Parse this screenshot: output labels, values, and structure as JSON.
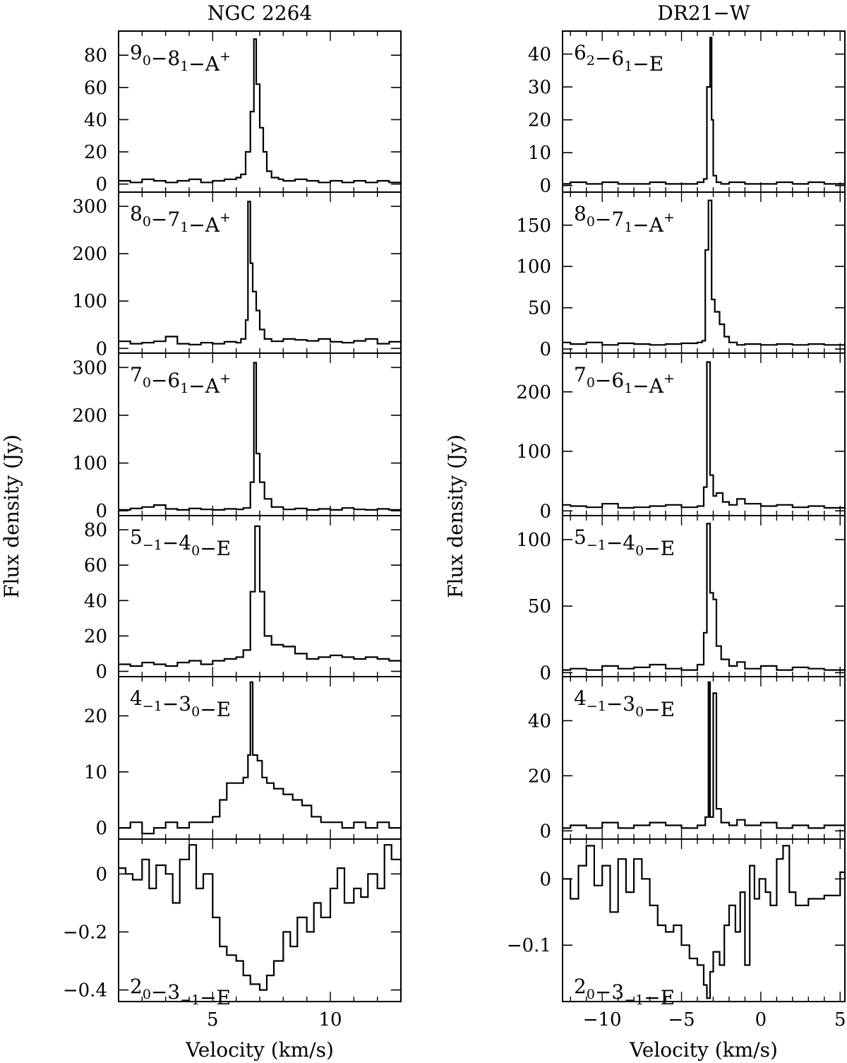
{
  "figure": {
    "ylabel": "Flux density (Jy)",
    "xlabel": "Velocity (km/s)"
  },
  "chart_data": [
    {
      "type": "line",
      "column": "NGC 2264",
      "title": "NGC 2264",
      "transition": {
        "a": "9",
        "as": "0",
        "b": "8",
        "bs": "1",
        "sym": "A",
        "sup": "+"
      },
      "xlim": [
        1.0,
        13.0
      ],
      "ylim": [
        -5,
        95
      ],
      "yticks": [
        0,
        20,
        40,
        60,
        80
      ],
      "ytick_labels": [
        "0",
        "20",
        "40",
        "60",
        "80"
      ],
      "series": [
        {
          "x": [
            1.0,
            1.5,
            2.0,
            2.5,
            3.0,
            3.5,
            4.0,
            4.5,
            5.0,
            5.5,
            6.0,
            6.2,
            6.4,
            6.6,
            6.75,
            6.85,
            7.0,
            7.15,
            7.3,
            7.5,
            7.8,
            8.0,
            8.5,
            9.0,
            9.5,
            10.0,
            10.5,
            11.0,
            11.5,
            12.0,
            12.5,
            13.0
          ],
          "y": [
            2,
            1,
            3,
            2,
            1,
            2,
            3,
            1,
            2,
            3,
            4,
            6,
            20,
            45,
            90,
            62,
            35,
            20,
            8,
            4,
            3,
            2,
            3,
            2,
            1,
            2,
            1,
            2,
            1,
            2,
            1,
            2
          ]
        }
      ]
    },
    {
      "type": "line",
      "column": "NGC 2264",
      "transition": {
        "a": "8",
        "as": "0",
        "b": "7",
        "bs": "1",
        "sym": "A",
        "sup": "+"
      },
      "xlim": [
        1.0,
        13.0
      ],
      "ylim": [
        -10,
        330
      ],
      "yticks": [
        0,
        100,
        200,
        300
      ],
      "ytick_labels": [
        "0",
        "100",
        "200",
        "300"
      ],
      "series": [
        {
          "x": [
            1.0,
            1.5,
            2.0,
            2.5,
            3.0,
            3.5,
            4.0,
            4.5,
            5.0,
            5.5,
            6.0,
            6.2,
            6.4,
            6.5,
            6.6,
            6.7,
            6.85,
            7.0,
            7.2,
            7.5,
            8.0,
            8.5,
            9.0,
            9.5,
            10.0,
            10.5,
            11.0,
            11.5,
            12.0,
            12.5,
            13.0
          ],
          "y": [
            15,
            10,
            12,
            15,
            25,
            10,
            8,
            12,
            10,
            14,
            12,
            20,
            60,
            310,
            180,
            120,
            80,
            40,
            20,
            15,
            20,
            18,
            16,
            20,
            14,
            12,
            16,
            20,
            10,
            14,
            8
          ]
        }
      ]
    },
    {
      "type": "line",
      "column": "NGC 2264",
      "transition": {
        "a": "7",
        "as": "0",
        "b": "6",
        "bs": "1",
        "sym": "A",
        "sup": "+"
      },
      "xlim": [
        1.0,
        13.0
      ],
      "ylim": [
        -10,
        330
      ],
      "yticks": [
        0,
        100,
        200,
        300
      ],
      "ytick_labels": [
        "0",
        "100",
        "200",
        "300"
      ],
      "series": [
        {
          "x": [
            1.0,
            1.5,
            2.0,
            2.5,
            3.0,
            3.5,
            4.0,
            4.5,
            5.0,
            5.5,
            6.0,
            6.3,
            6.6,
            6.75,
            6.85,
            7.0,
            7.2,
            7.5,
            8.0,
            8.5,
            9.0,
            9.5,
            10.0,
            10.5,
            11.0,
            11.5,
            12.0,
            12.5,
            13.0
          ],
          "y": [
            2,
            5,
            8,
            12,
            4,
            2,
            5,
            3,
            2,
            4,
            3,
            6,
            60,
            310,
            120,
            60,
            25,
            8,
            3,
            5,
            2,
            4,
            2,
            6,
            3,
            2,
            4,
            2,
            3
          ]
        }
      ]
    },
    {
      "type": "line",
      "column": "NGC 2264",
      "transition": {
        "a": "5",
        "as": "−1",
        "b": "4",
        "bs": "0",
        "sym": "E",
        "sup": ""
      },
      "xlim": [
        1.0,
        13.0
      ],
      "ylim": [
        -3,
        88
      ],
      "yticks": [
        0,
        20,
        40,
        60,
        80
      ],
      "ytick_labels": [
        "0",
        "20",
        "40",
        "60",
        "80"
      ],
      "series": [
        {
          "x": [
            1.0,
            1.5,
            2.0,
            2.5,
            3.0,
            3.5,
            4.0,
            4.5,
            5.0,
            5.5,
            6.0,
            6.3,
            6.6,
            6.8,
            7.0,
            7.2,
            7.5,
            8.0,
            8.5,
            9.0,
            9.5,
            10.0,
            10.5,
            11.0,
            11.5,
            12.0,
            12.5,
            13.0
          ],
          "y": [
            4,
            3,
            5,
            4,
            3,
            5,
            6,
            4,
            6,
            7,
            8,
            12,
            45,
            82,
            45,
            20,
            15,
            14,
            10,
            7,
            8,
            9,
            8,
            7,
            8,
            7,
            6,
            5
          ]
        }
      ]
    },
    {
      "type": "line",
      "column": "NGC 2264",
      "transition": {
        "a": "4",
        "as": "−1",
        "b": "3",
        "bs": "0",
        "sym": "E",
        "sup": ""
      },
      "xlim": [
        1.0,
        13.0
      ],
      "ylim": [
        -2,
        27
      ],
      "yticks": [
        0,
        10,
        20
      ],
      "ytick_labels": [
        "0",
        "10",
        "20"
      ],
      "series": [
        {
          "x": [
            1.0,
            1.5,
            2.0,
            2.5,
            3.0,
            3.5,
            4.0,
            4.5,
            5.0,
            5.3,
            5.6,
            5.9,
            6.1,
            6.3,
            6.5,
            6.6,
            6.7,
            6.9,
            7.1,
            7.3,
            7.6,
            8.0,
            8.4,
            8.8,
            9.2,
            9.6,
            10.0,
            10.5,
            11.0,
            11.5,
            12.0,
            12.5,
            13.0
          ],
          "y": [
            0,
            1,
            -1,
            0,
            1,
            0,
            1,
            1,
            2,
            5,
            8,
            8,
            8,
            9,
            13,
            26,
            13,
            12,
            9,
            8,
            7,
            6,
            5,
            4,
            2,
            1,
            1,
            0,
            1,
            0,
            1,
            0,
            1
          ]
        }
      ]
    },
    {
      "type": "line",
      "column": "NGC 2264",
      "transition": {
        "a": "2",
        "as": "0",
        "b": "3",
        "bs": "−1",
        "sym": "E",
        "sup": ""
      },
      "xlim": [
        1.0,
        13.0
      ],
      "ylim": [
        -0.44,
        0.12
      ],
      "yticks": [
        0,
        -0.2,
        -0.4
      ],
      "ytick_labels": [
        "0",
        "−0.2",
        "−0.4"
      ],
      "xticks": [
        5,
        10
      ],
      "xtick_labels": [
        "5",
        "10"
      ],
      "series": [
        {
          "x": [
            1.0,
            1.3,
            1.6,
            2.0,
            2.3,
            2.6,
            3.0,
            3.3,
            3.6,
            4.0,
            4.3,
            4.6,
            5.0,
            5.3,
            5.6,
            6.0,
            6.3,
            6.6,
            7.0,
            7.3,
            7.6,
            8.0,
            8.3,
            8.6,
            9.0,
            9.3,
            9.6,
            10.0,
            10.3,
            10.6,
            11.0,
            11.3,
            11.6,
            12.0,
            12.3,
            12.6,
            13.0
          ],
          "y": [
            0.02,
            0.0,
            -0.02,
            0.05,
            -0.05,
            0.03,
            0.0,
            -0.1,
            0.05,
            0.1,
            -0.05,
            0.0,
            -0.15,
            -0.25,
            -0.28,
            -0.3,
            -0.35,
            -0.38,
            -0.4,
            -0.35,
            -0.3,
            -0.2,
            -0.25,
            -0.15,
            -0.2,
            -0.1,
            -0.15,
            -0.05,
            0.02,
            -0.1,
            -0.05,
            -0.08,
            0.0,
            -0.05,
            0.1,
            0.05,
            0.0
          ]
        }
      ]
    },
    {
      "type": "line",
      "column": "DR21-W",
      "title": "DR21−W",
      "transition": {
        "a": "6",
        "as": "2",
        "b": "6",
        "bs": "1",
        "sym": "E",
        "sup": ""
      },
      "xlim": [
        -12.5,
        5.3
      ],
      "ylim": [
        -2,
        47
      ],
      "yticks": [
        0,
        10,
        20,
        30,
        40
      ],
      "ytick_labels": [
        "0",
        "10",
        "20",
        "30",
        "40"
      ],
      "series": [
        {
          "x": [
            -12.5,
            -12.0,
            -11.0,
            -10.0,
            -9.0,
            -8.0,
            -7.0,
            -6.0,
            -5.0,
            -4.0,
            -3.6,
            -3.4,
            -3.2,
            -3.1,
            -3.0,
            -2.8,
            -2.5,
            -2.0,
            -1.0,
            0.0,
            1.0,
            2.0,
            3.0,
            4.0,
            5.3
          ],
          "y": [
            0.5,
            1,
            0.5,
            1,
            0.5,
            0.5,
            1,
            0.5,
            0.5,
            1,
            2,
            30,
            45,
            20,
            3,
            1,
            0.5,
            1,
            0.5,
            0.5,
            1,
            0.5,
            1,
            0.5,
            2
          ]
        }
      ]
    },
    {
      "type": "line",
      "column": "DR21-W",
      "transition": {
        "a": "8",
        "as": "0",
        "b": "7",
        "bs": "1",
        "sym": "A",
        "sup": "+"
      },
      "xlim": [
        -12.5,
        5.3
      ],
      "ylim": [
        -5,
        190
      ],
      "yticks": [
        0,
        50,
        100,
        150
      ],
      "ytick_labels": [
        "0",
        "50",
        "100",
        "150"
      ],
      "series": [
        {
          "x": [
            -12.5,
            -12.0,
            -11.0,
            -10.0,
            -9.0,
            -8.0,
            -7.0,
            -6.0,
            -5.0,
            -4.0,
            -3.7,
            -3.5,
            -3.3,
            -3.1,
            -2.9,
            -2.6,
            -2.3,
            -2.0,
            -1.5,
            -1.0,
            0.0,
            1.0,
            2.0,
            3.0,
            4.0,
            5.3
          ],
          "y": [
            8,
            6,
            8,
            5,
            7,
            6,
            5,
            6,
            7,
            8,
            10,
            120,
            180,
            60,
            45,
            30,
            15,
            8,
            5,
            6,
            5,
            6,
            5,
            6,
            5,
            8
          ]
        }
      ]
    },
    {
      "type": "line",
      "column": "DR21-W",
      "transition": {
        "a": "7",
        "as": "0",
        "b": "6",
        "bs": "1",
        "sym": "A",
        "sup": "+"
      },
      "xlim": [
        -12.5,
        5.3
      ],
      "ylim": [
        -8,
        265
      ],
      "yticks": [
        0,
        100,
        200
      ],
      "ytick_labels": [
        "0",
        "100",
        "200"
      ],
      "series": [
        {
          "x": [
            -12.5,
            -12.0,
            -11.0,
            -10.0,
            -9.0,
            -8.0,
            -7.0,
            -6.0,
            -5.0,
            -4.0,
            -3.6,
            -3.4,
            -3.2,
            -3.0,
            -2.8,
            -2.4,
            -2.0,
            -1.5,
            -1.0,
            0.0,
            1.0,
            2.0,
            3.0,
            4.0,
            5.3
          ],
          "y": [
            10,
            8,
            6,
            12,
            5,
            6,
            8,
            10,
            6,
            8,
            40,
            250,
            60,
            25,
            30,
            15,
            10,
            20,
            12,
            8,
            10,
            6,
            8,
            5,
            3
          ]
        }
      ]
    },
    {
      "type": "line",
      "column": "DR21-W",
      "transition": {
        "a": "5",
        "as": "−1",
        "b": "4",
        "bs": "0",
        "sym": "E",
        "sup": ""
      },
      "xlim": [
        -12.5,
        5.3
      ],
      "ylim": [
        -3,
        118
      ],
      "yticks": [
        0,
        50,
        100
      ],
      "ytick_labels": [
        "0",
        "50",
        "100"
      ],
      "series": [
        {
          "x": [
            -12.5,
            -12.0,
            -11.0,
            -10.0,
            -9.0,
            -8.0,
            -7.0,
            -6.0,
            -5.0,
            -4.0,
            -3.6,
            -3.4,
            -3.2,
            -3.0,
            -2.8,
            -2.5,
            -2.0,
            -1.5,
            -1.0,
            0.0,
            1.0,
            2.0,
            3.0,
            4.0,
            5.3
          ],
          "y": [
            2,
            3,
            2,
            5,
            3,
            4,
            6,
            3,
            2,
            6,
            30,
            112,
            60,
            55,
            20,
            10,
            5,
            8,
            3,
            5,
            2,
            4,
            3,
            2,
            5
          ]
        }
      ]
    },
    {
      "type": "line",
      "column": "DR21-W",
      "transition": {
        "a": "4",
        "as": "−1",
        "b": "3",
        "bs": "0",
        "sym": "E",
        "sup": ""
      },
      "xlim": [
        -12.5,
        5.3
      ],
      "ylim": [
        -3,
        56
      ],
      "yticks": [
        0,
        20,
        40
      ],
      "ytick_labels": [
        "0",
        "20",
        "40"
      ],
      "series": [
        {
          "x": [
            -12.5,
            -12.0,
            -11.0,
            -10.0,
            -9.0,
            -8.0,
            -7.0,
            -6.0,
            -5.0,
            -4.0,
            -3.5,
            -3.3,
            -3.2,
            -3.0,
            -2.8,
            -2.5,
            -2.0,
            -1.5,
            -1.0,
            0.0,
            1.0,
            2.0,
            3.0,
            4.0,
            5.3
          ],
          "y": [
            1,
            2,
            1,
            3,
            1,
            2,
            3,
            2,
            1,
            2,
            5,
            54,
            5,
            50,
            8,
            3,
            2,
            4,
            2,
            3,
            1,
            2,
            1,
            2,
            3
          ]
        }
      ]
    },
    {
      "type": "line",
      "column": "DR21-W",
      "transition": {
        "a": "2",
        "as": "0",
        "b": "3",
        "bs": "−1",
        "sym": "E",
        "sup": ""
      },
      "xlim": [
        -12.5,
        5.3
      ],
      "ylim": [
        -0.185,
        0.06
      ],
      "yticks": [
        0,
        -0.1
      ],
      "ytick_labels": [
        "0",
        "−0.1"
      ],
      "xticks": [
        -10,
        -5,
        0,
        5
      ],
      "xtick_labels": [
        "−10",
        "−5",
        "0",
        "5"
      ],
      "series": [
        {
          "x": [
            -12.5,
            -12.0,
            -11.5,
            -11.0,
            -10.5,
            -10.0,
            -9.5,
            -9.0,
            -8.5,
            -8.0,
            -7.5,
            -7.0,
            -6.5,
            -6.0,
            -5.5,
            -5.0,
            -4.5,
            -4.0,
            -3.6,
            -3.4,
            -3.2,
            -3.0,
            -2.6,
            -2.3,
            -2.0,
            -1.6,
            -1.3,
            -1.0,
            -0.7,
            -0.4,
            -0.1,
            0.3,
            0.6,
            1.0,
            1.4,
            1.8,
            2.2,
            3.0,
            4.0,
            5.0,
            5.3
          ],
          "y": [
            0.0,
            -0.03,
            0.02,
            0.05,
            -0.01,
            0.02,
            -0.05,
            0.03,
            -0.02,
            0.03,
            0.0,
            -0.04,
            -0.07,
            -0.08,
            -0.07,
            -0.1,
            -0.12,
            -0.13,
            -0.16,
            -0.18,
            -0.14,
            -0.11,
            -0.13,
            -0.07,
            -0.04,
            -0.08,
            -0.02,
            -0.13,
            0.02,
            -0.03,
            0.0,
            -0.02,
            -0.04,
            0.03,
            0.05,
            -0.02,
            -0.04,
            -0.03,
            -0.025,
            0.01,
            0.0
          ]
        }
      ]
    }
  ]
}
